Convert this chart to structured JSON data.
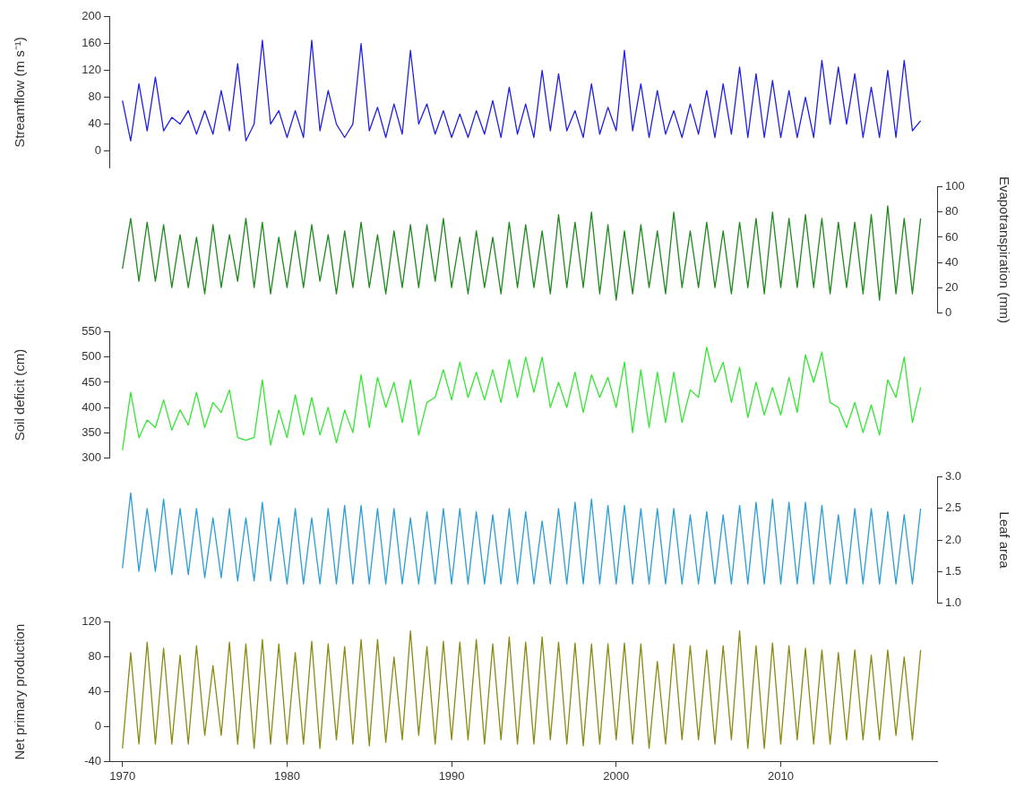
{
  "chart_data": [
    {
      "type": "line",
      "ylabel": "Streamflow (m s⁻¹)",
      "tick_labels": "y",
      "ylim": [
        -25,
        200
      ],
      "yticks": [
        0,
        40,
        80,
        120,
        160,
        200
      ],
      "x": [
        1970,
        1970.5,
        1971,
        1971.5,
        1972,
        1972.5,
        1973,
        1973.5,
        1974,
        1974.5,
        1975,
        1975.5,
        1976,
        1976.5,
        1977,
        1977.5,
        1978,
        1978.5,
        1979,
        1979.5,
        1980,
        1980.5,
        1981,
        1981.5,
        1982,
        1982.5,
        1983,
        1983.5,
        1984,
        1984.5,
        1985,
        1985.5,
        1986,
        1986.5,
        1987,
        1987.5,
        1988,
        1988.5,
        1989,
        1989.5,
        1990,
        1990.5,
        1991,
        1991.5,
        1992,
        1992.5,
        1993,
        1993.5,
        1994,
        1994.5,
        1995,
        1995.5,
        1996,
        1996.5,
        1997,
        1997.5,
        1998,
        1998.5,
        1999,
        1999.5,
        2000,
        2000.5,
        2001,
        2001.5,
        2002,
        2002.5,
        2003,
        2003.5,
        2004,
        2004.5,
        2005,
        2005.5,
        2006,
        2006.5,
        2007,
        2007.5,
        2008,
        2008.5,
        2009,
        2009.5,
        2010,
        2010.5,
        2011,
        2011.5,
        2012,
        2012.5,
        2013,
        2013.5,
        2014,
        2014.5,
        2015,
        2015.5,
        2016,
        2016.5,
        2017,
        2017.5,
        2018,
        2018.5
      ],
      "series": [
        {
          "color": "#1f1fe6",
          "values": [
            75,
            15,
            100,
            30,
            110,
            30,
            50,
            40,
            60,
            25,
            60,
            25,
            90,
            30,
            130,
            15,
            40,
            165,
            40,
            60,
            20,
            60,
            20,
            165,
            30,
            90,
            40,
            20,
            40,
            160,
            30,
            65,
            20,
            70,
            25,
            150,
            40,
            70,
            25,
            60,
            20,
            55,
            20,
            60,
            25,
            75,
            20,
            95,
            25,
            70,
            20,
            120,
            30,
            115,
            30,
            60,
            20,
            100,
            25,
            65,
            30,
            150,
            30,
            100,
            20,
            90,
            25,
            60,
            20,
            70,
            25,
            90,
            20,
            100,
            25,
            125,
            20,
            115,
            20,
            105,
            20,
            90,
            20,
            80,
            20,
            135,
            40,
            125,
            40,
            115,
            20,
            95,
            20,
            120,
            20,
            135,
            30,
            45
          ]
        }
      ]
    },
    {
      "type": "line",
      "ylabel": "Evapotranspiration (mm)",
      "tick_labels": "y",
      "ylim": [
        0,
        100
      ],
      "yticks": [
        0,
        20,
        40,
        60,
        80,
        100
      ],
      "x": [
        1970,
        1970.5,
        1971,
        1971.5,
        1972,
        1972.5,
        1973,
        1973.5,
        1974,
        1974.5,
        1975,
        1975.5,
        1976,
        1976.5,
        1977,
        1977.5,
        1978,
        1978.5,
        1979,
        1979.5,
        1980,
        1980.5,
        1981,
        1981.5,
        1982,
        1982.5,
        1983,
        1983.5,
        1984,
        1984.5,
        1985,
        1985.5,
        1986,
        1986.5,
        1987,
        1987.5,
        1988,
        1988.5,
        1989,
        1989.5,
        1990,
        1990.5,
        1991,
        1991.5,
        1992,
        1992.5,
        1993,
        1993.5,
        1994,
        1994.5,
        1995,
        1995.5,
        1996,
        1996.5,
        1997,
        1997.5,
        1998,
        1998.5,
        1999,
        1999.5,
        2000,
        2000.5,
        2001,
        2001.5,
        2002,
        2002.5,
        2003,
        2003.5,
        2004,
        2004.5,
        2005,
        2005.5,
        2006,
        2006.5,
        2007,
        2007.5,
        2008,
        2008.5,
        2009,
        2009.5,
        2010,
        2010.5,
        2011,
        2011.5,
        2012,
        2012.5,
        2013,
        2013.5,
        2014,
        2014.5,
        2015,
        2015.5,
        2016,
        2016.5,
        2017,
        2017.5,
        2018,
        2018.5
      ],
      "series": [
        {
          "color": "#1e8a1e",
          "values": [
            35,
            75,
            25,
            72,
            25,
            70,
            20,
            62,
            20,
            60,
            15,
            70,
            20,
            62,
            25,
            75,
            20,
            72,
            15,
            60,
            20,
            65,
            20,
            70,
            25,
            62,
            15,
            65,
            20,
            72,
            20,
            62,
            15,
            65,
            20,
            70,
            20,
            70,
            25,
            75,
            20,
            60,
            15,
            65,
            20,
            60,
            15,
            72,
            20,
            70,
            20,
            65,
            15,
            78,
            20,
            72,
            20,
            80,
            15,
            70,
            10,
            65,
            15,
            70,
            20,
            65,
            15,
            80,
            20,
            65,
            20,
            72,
            20,
            65,
            15,
            72,
            20,
            75,
            15,
            80,
            20,
            75,
            20,
            78,
            20,
            75,
            15,
            72,
            20,
            72,
            15,
            78,
            10,
            85,
            15,
            75,
            15,
            75
          ]
        }
      ]
    },
    {
      "type": "line",
      "ylabel": "Soil deficit (cm)",
      "tick_labels": "y",
      "ylim": [
        300,
        550
      ],
      "yticks": [
        300,
        350,
        400,
        450,
        500,
        550
      ],
      "x": [
        1970,
        1970.5,
        1971,
        1971.5,
        1972,
        1972.5,
        1973,
        1973.5,
        1974,
        1974.5,
        1975,
        1975.5,
        1976,
        1976.5,
        1977,
        1977.5,
        1978,
        1978.5,
        1979,
        1979.5,
        1980,
        1980.5,
        1981,
        1981.5,
        1982,
        1982.5,
        1983,
        1983.5,
        1984,
        1984.5,
        1985,
        1985.5,
        1986,
        1986.5,
        1987,
        1987.5,
        1988,
        1988.5,
        1989,
        1989.5,
        1990,
        1990.5,
        1991,
        1991.5,
        1992,
        1992.5,
        1993,
        1993.5,
        1994,
        1994.5,
        1995,
        1995.5,
        1996,
        1996.5,
        1997,
        1997.5,
        1998,
        1998.5,
        1999,
        1999.5,
        2000,
        2000.5,
        2001,
        2001.5,
        2002,
        2002.5,
        2003,
        2003.5,
        2004,
        2004.5,
        2005,
        2005.5,
        2006,
        2006.5,
        2007,
        2007.5,
        2008,
        2008.5,
        2009,
        2009.5,
        2010,
        2010.5,
        2011,
        2011.5,
        2012,
        2012.5,
        2013,
        2013.5,
        2014,
        2014.5,
        2015,
        2015.5,
        2016,
        2016.5,
        2017,
        2017.5,
        2018,
        2018.5
      ],
      "series": [
        {
          "color": "#33e633",
          "values": [
            315,
            430,
            340,
            375,
            360,
            415,
            355,
            395,
            365,
            430,
            360,
            410,
            390,
            435,
            340,
            335,
            340,
            455,
            325,
            395,
            340,
            425,
            345,
            420,
            345,
            400,
            330,
            395,
            350,
            465,
            360,
            460,
            400,
            450,
            370,
            455,
            345,
            410,
            420,
            475,
            415,
            490,
            420,
            470,
            415,
            475,
            410,
            495,
            420,
            500,
            430,
            500,
            400,
            450,
            400,
            470,
            390,
            465,
            420,
            460,
            400,
            490,
            350,
            475,
            360,
            470,
            370,
            470,
            370,
            435,
            420,
            520,
            450,
            490,
            410,
            480,
            380,
            450,
            385,
            440,
            385,
            460,
            390,
            505,
            450,
            510,
            410,
            400,
            360,
            410,
            350,
            405,
            345,
            455,
            420,
            500,
            370,
            440
          ]
        }
      ]
    },
    {
      "type": "line",
      "ylabel": "Leaf area",
      "tick_labels": "y",
      "ylim": [
        1,
        3
      ],
      "yticks": [
        {
          "value": 1,
          "label": "1.0"
        },
        {
          "value": 1.5,
          "label": "1.5"
        },
        {
          "value": 2,
          "label": "2.0"
        },
        {
          "value": 2.5,
          "label": "2.5"
        },
        {
          "value": 3,
          "label": "3.0"
        }
      ],
      "x": [
        1970,
        1970.5,
        1971,
        1971.5,
        1972,
        1972.5,
        1973,
        1973.5,
        1974,
        1974.5,
        1975,
        1975.5,
        1976,
        1976.5,
        1977,
        1977.5,
        1978,
        1978.5,
        1979,
        1979.5,
        1980,
        1980.5,
        1981,
        1981.5,
        1982,
        1982.5,
        1983,
        1983.5,
        1984,
        1984.5,
        1985,
        1985.5,
        1986,
        1986.5,
        1987,
        1987.5,
        1988,
        1988.5,
        1989,
        1989.5,
        1990,
        1990.5,
        1991,
        1991.5,
        1992,
        1992.5,
        1993,
        1993.5,
        1994,
        1994.5,
        1995,
        1995.5,
        1996,
        1996.5,
        1997,
        1997.5,
        1998,
        1998.5,
        1999,
        1999.5,
        2000,
        2000.5,
        2001,
        2001.5,
        2002,
        2002.5,
        2003,
        2003.5,
        2004,
        2004.5,
        2005,
        2005.5,
        2006,
        2006.5,
        2007,
        2007.5,
        2008,
        2008.5,
        2009,
        2009.5,
        2010,
        2010.5,
        2011,
        2011.5,
        2012,
        2012.5,
        2013,
        2013.5,
        2014,
        2014.5,
        2015,
        2015.5,
        2016,
        2016.5,
        2017,
        2017.5,
        2018,
        2018.5
      ],
      "series": [
        {
          "color": "#2a9fd6",
          "values": [
            1.55,
            2.75,
            1.5,
            2.5,
            1.5,
            2.65,
            1.45,
            2.5,
            1.45,
            2.5,
            1.4,
            2.35,
            1.4,
            2.5,
            1.35,
            2.35,
            1.35,
            2.6,
            1.35,
            2.35,
            1.3,
            2.5,
            1.3,
            2.35,
            1.3,
            2.5,
            1.3,
            2.55,
            1.3,
            2.55,
            1.3,
            2.5,
            1.3,
            2.5,
            1.3,
            2.35,
            1.3,
            2.45,
            1.3,
            2.5,
            1.3,
            2.5,
            1.3,
            2.45,
            1.3,
            2.4,
            1.3,
            2.5,
            1.3,
            2.45,
            1.3,
            2.3,
            1.3,
            2.5,
            1.3,
            2.6,
            1.3,
            2.65,
            1.3,
            2.55,
            1.3,
            2.55,
            1.3,
            2.5,
            1.3,
            2.5,
            1.3,
            2.5,
            1.3,
            2.4,
            1.3,
            2.45,
            1.3,
            2.4,
            1.3,
            2.55,
            1.3,
            2.6,
            1.3,
            2.65,
            1.3,
            2.6,
            1.3,
            2.6,
            1.3,
            2.55,
            1.3,
            2.4,
            1.3,
            2.5,
            1.3,
            2.5,
            1.3,
            2.45,
            1.3,
            2.4,
            1.3,
            2.5
          ]
        }
      ]
    },
    {
      "type": "line",
      "ylabel": "Net primary production",
      "xlim": [
        1969.2,
        2019.5
      ],
      "xticks": [
        1970,
        1980,
        1990,
        2000,
        2010
      ],
      "ylim": [
        -40,
        120
      ],
      "yticks": [
        -40,
        0,
        40,
        80,
        120
      ],
      "x": [
        1970,
        1970.5,
        1971,
        1971.5,
        1972,
        1972.5,
        1973,
        1973.5,
        1974,
        1974.5,
        1975,
        1975.5,
        1976,
        1976.5,
        1977,
        1977.5,
        1978,
        1978.5,
        1979,
        1979.5,
        1980,
        1980.5,
        1981,
        1981.5,
        1982,
        1982.5,
        1983,
        1983.5,
        1984,
        1984.5,
        1985,
        1985.5,
        1986,
        1986.5,
        1987,
        1987.5,
        1988,
        1988.5,
        1989,
        1989.5,
        1990,
        1990.5,
        1991,
        1991.5,
        1992,
        1992.5,
        1993,
        1993.5,
        1994,
        1994.5,
        1995,
        1995.5,
        1996,
        1996.5,
        1997,
        1997.5,
        1998,
        1998.5,
        1999,
        1999.5,
        2000,
        2000.5,
        2001,
        2001.5,
        2002,
        2002.5,
        2003,
        2003.5,
        2004,
        2004.5,
        2005,
        2005.5,
        2006,
        2006.5,
        2007,
        2007.5,
        2008,
        2008.5,
        2009,
        2009.5,
        2010,
        2010.5,
        2011,
        2011.5,
        2012,
        2012.5,
        2013,
        2013.5,
        2014,
        2014.5,
        2015,
        2015.5,
        2016,
        2016.5,
        2017,
        2017.5,
        2018,
        2018.5
      ],
      "series": [
        {
          "color": "#8a8a10",
          "values": [
            -25,
            85,
            -20,
            97,
            -20,
            90,
            -20,
            82,
            -20,
            93,
            -10,
            70,
            -10,
            97,
            -20,
            95,
            -25,
            100,
            -20,
            95,
            -20,
            85,
            -20,
            98,
            -25,
            95,
            -15,
            92,
            -20,
            100,
            -22,
            100,
            -18,
            80,
            -15,
            110,
            -10,
            92,
            -20,
            98,
            -15,
            97,
            -15,
            100,
            -20,
            95,
            -15,
            103,
            -20,
            97,
            -20,
            103,
            -15,
            97,
            -20,
            96,
            -22,
            95,
            -20,
            95,
            -15,
            96,
            -20,
            95,
            -25,
            75,
            -20,
            95,
            -15,
            93,
            -15,
            88,
            -20,
            93,
            -15,
            110,
            -25,
            93,
            -25,
            96,
            -20,
            93,
            -15,
            90,
            -20,
            88,
            -20,
            85,
            -15,
            88,
            -15,
            82,
            -15,
            88,
            -10,
            80,
            -15,
            88
          ]
        }
      ]
    }
  ]
}
